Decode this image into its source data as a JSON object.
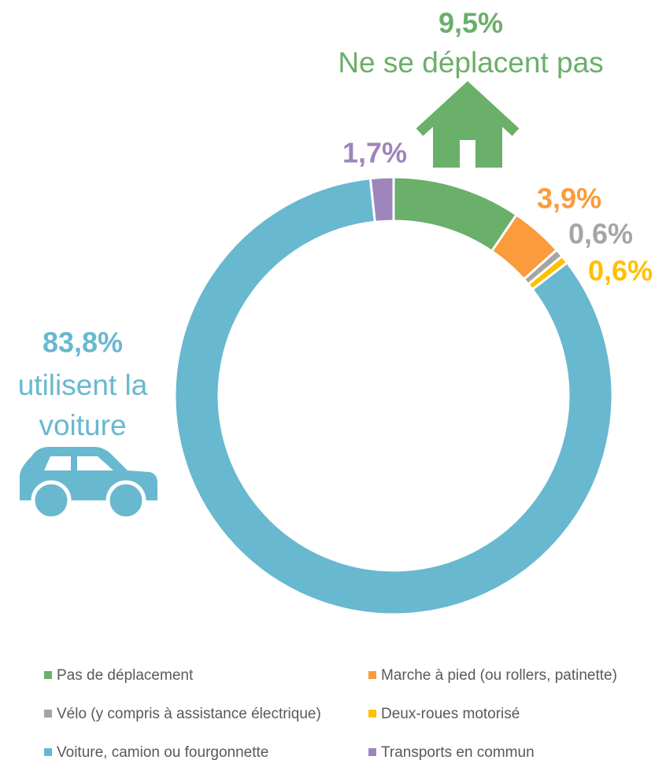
{
  "chart_data": {
    "type": "donut",
    "categories": [
      "Pas de déplacement",
      "Marche à pied (ou rollers, patinette)",
      "Vélo (y compris à assistance électrique)",
      "Deux-roues motorisé",
      "Voiture, camion ou fourgonnette",
      "Transports en commun"
    ],
    "values": [
      9.5,
      3.9,
      0.6,
      0.6,
      83.8,
      1.7
    ],
    "value_labels": [
      "9,5%",
      "3,9%",
      "0,6%",
      "0,6%",
      "83,8%",
      "1,7%"
    ],
    "colors": [
      "#6aaf6a",
      "#fb9b3b",
      "#a5a5a5",
      "#ffc000",
      "#68b8d0",
      "#9e85bb"
    ],
    "annotations": {
      "home": "Ne se déplacent pas",
      "car": [
        "utilisent la",
        "voiture"
      ]
    },
    "legend": "bottom"
  }
}
